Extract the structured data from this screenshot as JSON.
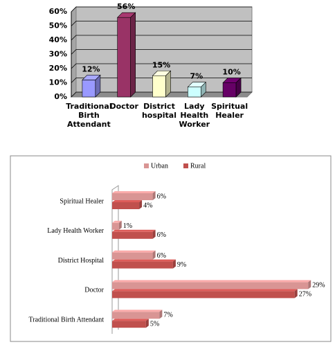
{
  "chart_data": [
    {
      "type": "bar3d",
      "categories": [
        "Traditional Birth Attendant",
        "Doctor",
        "District hospital",
        "Lady Health Worker",
        "Spiritual Healer"
      ],
      "values": [
        12,
        56,
        15,
        7,
        10
      ],
      "value_labels": [
        "12%",
        "56%",
        "15%",
        "7%",
        "10%"
      ],
      "colors": [
        "#9999ff",
        "#993366",
        "#ffffcc",
        "#ccffff",
        "#660066"
      ],
      "ylim": [
        0,
        60
      ],
      "yticks": [
        {
          "value": 0,
          "label": "0%"
        },
        {
          "value": 10,
          "label": "10%"
        },
        {
          "value": 20,
          "label": "20%"
        },
        {
          "value": 30,
          "label": "30%"
        },
        {
          "value": 40,
          "label": "40%"
        },
        {
          "value": 50,
          "label": "50%"
        },
        {
          "value": 60,
          "label": "60%"
        }
      ],
      "grid": true
    },
    {
      "type": "hbar3d",
      "categories": [
        "Spiritual Healer",
        "Lady Health Worker",
        "District Hospital",
        "Doctor",
        "Traditional Birth Attendant"
      ],
      "series": [
        {
          "name": "Urban",
          "color": "#d99594",
          "values": [
            6,
            1,
            6,
            29,
            7
          ],
          "value_labels": [
            "6%",
            "1%",
            "6%",
            "29%",
            "7%"
          ]
        },
        {
          "name": "Rural",
          "color": "#c0504d",
          "values": [
            4,
            6,
            9,
            27,
            5
          ],
          "value_labels": [
            "4%",
            "6%",
            "9%",
            "27%",
            "5%"
          ]
        }
      ],
      "xlim": [
        0,
        30
      ],
      "legend": "top"
    }
  ]
}
